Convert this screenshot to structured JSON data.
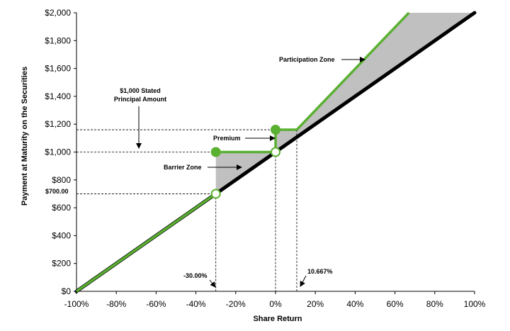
{
  "chart_data": {
    "type": "line",
    "title": "",
    "xlabel": "Share Return",
    "ylabel": "Payment at Maturity on the Securities",
    "xlim": [
      -100,
      100
    ],
    "ylim": [
      0,
      2000
    ],
    "x_ticks": [
      -100,
      -80,
      -60,
      -40,
      -20,
      0,
      20,
      40,
      60,
      80,
      100
    ],
    "x_tick_labels": [
      "-100%",
      "-80%",
      "-60%",
      "-40%",
      "-20%",
      "0%",
      "20%",
      "40%",
      "60%",
      "80%",
      "100%"
    ],
    "y_ticks": [
      0,
      200,
      400,
      600,
      800,
      1000,
      1200,
      1400,
      1600,
      1800,
      2000
    ],
    "y_tick_labels": [
      "$0",
      "$200",
      "$400",
      "$600",
      "$800",
      "$1,000",
      "$1,200",
      "$1,400",
      "$1,600",
      "$1,800",
      "$2,000"
    ],
    "grid": false,
    "colors": {
      "securities": "#5ab031",
      "shares": "#000000",
      "zone_fill": "#c0c0c0"
    },
    "series": [
      {
        "line": "shares",
        "points": [
          [
            -100,
            0
          ],
          [
            100,
            2000
          ]
        ]
      },
      {
        "line": "securities",
        "segments": [
          [
            [
              -100,
              0
            ],
            [
              -30,
              700
            ]
          ],
          [
            [
              -30,
              1000
            ],
            [
              0,
              1000
            ]
          ],
          [
            [
              0,
              1000
            ],
            [
              0,
              1160
            ]
          ],
          [
            [
              0,
              1160
            ],
            [
              10.667,
              1160
            ]
          ],
          [
            [
              10.667,
              1160
            ],
            [
              67,
              2000
            ]
          ]
        ]
      }
    ],
    "markers": [
      {
        "x": -30,
        "y": 700,
        "style": "open"
      },
      {
        "x": -30,
        "y": 1000,
        "style": "filled"
      },
      {
        "x": 0,
        "y": 1000,
        "style": "open"
      },
      {
        "x": 0,
        "y": 1160,
        "style": "filled"
      }
    ],
    "zones": [
      {
        "name": "barrier",
        "polygon": [
          [
            -30,
            700
          ],
          [
            -30,
            1000
          ],
          [
            0,
            1000
          ]
        ]
      },
      {
        "name": "participation",
        "polygon": [
          [
            0,
            1000
          ],
          [
            0,
            1160
          ],
          [
            10.667,
            1160
          ],
          [
            67,
            2000
          ],
          [
            100,
            2000
          ],
          [
            100,
            2010
          ]
        ]
      }
    ],
    "reference_lines": [
      {
        "from": [
          -100,
          1160
        ],
        "to": [
          10.667,
          1160
        ]
      },
      {
        "from": [
          -100,
          1000
        ],
        "to": [
          0,
          1000
        ]
      },
      {
        "from": [
          -100,
          700
        ],
        "to": [
          -30,
          700
        ]
      },
      {
        "from": [
          -30,
          700
        ],
        "to": [
          -30,
          0
        ]
      },
      {
        "from": [
          0,
          1000
        ],
        "to": [
          0,
          0
        ]
      },
      {
        "from": [
          10.667,
          1160
        ],
        "to": [
          10.667,
          0
        ]
      }
    ],
    "annotations": {
      "stated_principal": [
        "$1,000 Stated",
        "Principal Amount"
      ],
      "participation_zone": "Participation Zone",
      "premium": "Premium",
      "barrier_zone": "Barrier Zone",
      "barrier_value": "$700.00",
      "barrier_pct": "-30.00%",
      "threshold_pct": "10.667%"
    }
  }
}
